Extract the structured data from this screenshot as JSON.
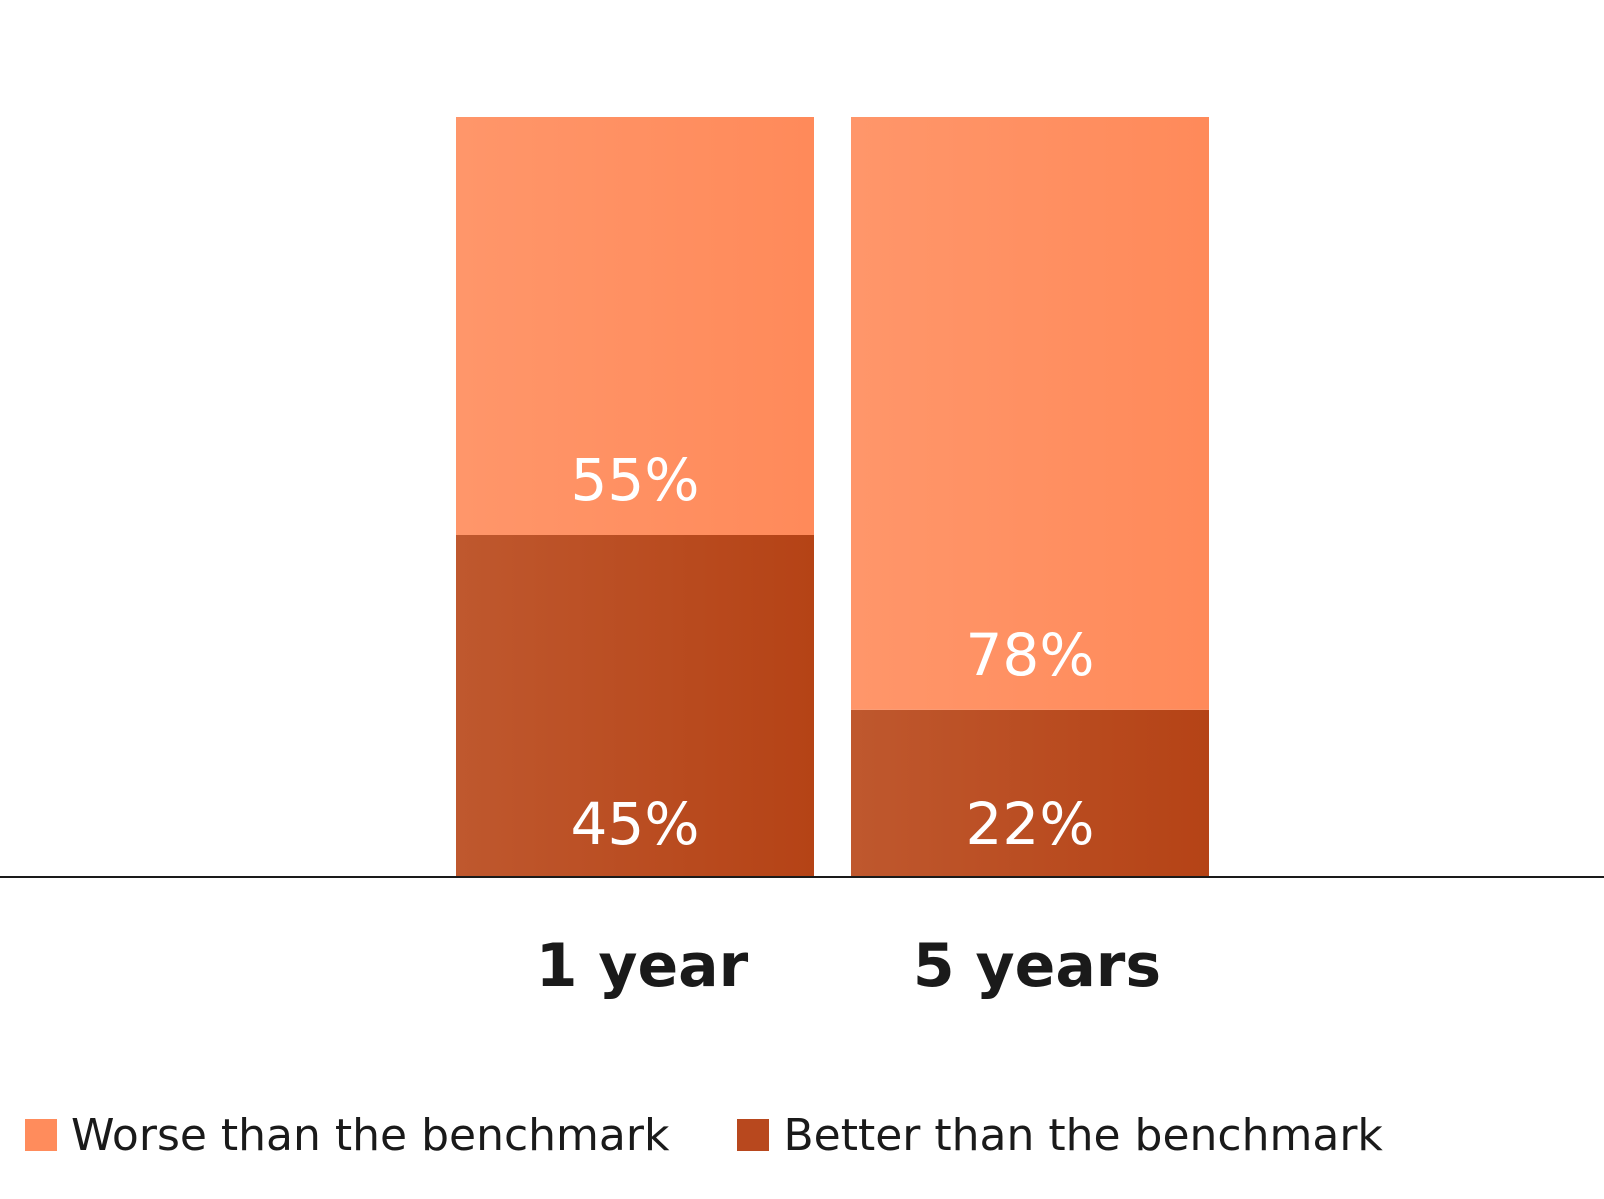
{
  "chart_data": {
    "type": "bar",
    "stacked": true,
    "categories": [
      "1 year",
      "5 years"
    ],
    "series": [
      {
        "name": "Better than the benchmark",
        "values": [
          45,
          22
        ],
        "labels": [
          "45%",
          "22%"
        ],
        "color": "#b8481e"
      },
      {
        "name": "Worse than the benchmark",
        "values": [
          55,
          78
        ],
        "labels": [
          "55%",
          "78%"
        ],
        "color": "#ff8c5c"
      }
    ],
    "ylim": [
      0,
      100
    ],
    "unit": "%",
    "grid": false,
    "legend_position": "bottom-left"
  },
  "legend": {
    "items": [
      {
        "label": "Worse than the benchmark",
        "color": "#ff8c5c"
      },
      {
        "label": "Better than the benchmark",
        "color": "#b8481e"
      }
    ]
  }
}
